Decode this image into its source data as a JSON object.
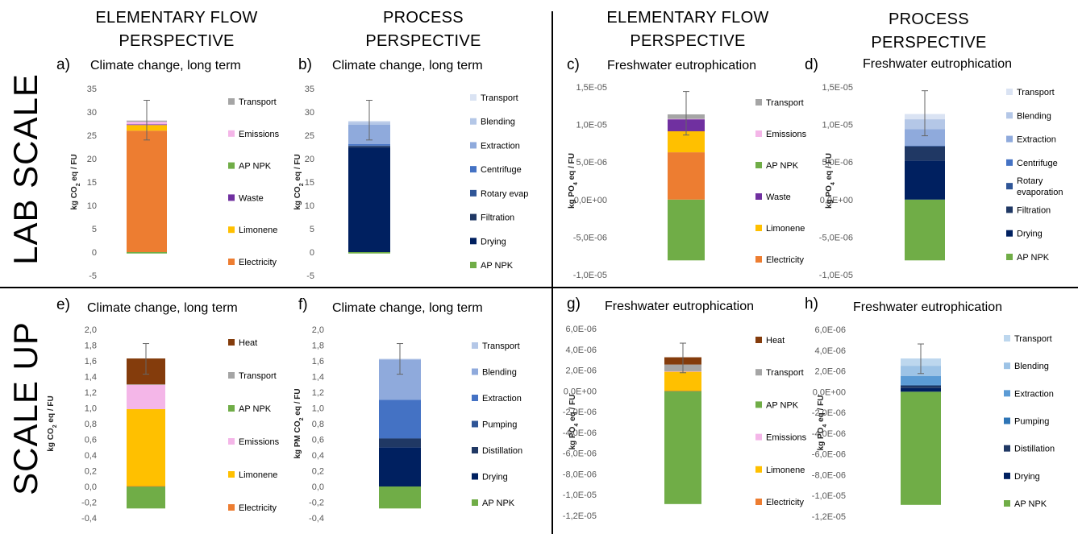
{
  "figure": {
    "header_left_1": "ELEMENTARY FLOW",
    "header_left_2": "PERSPECTIVE",
    "header_mid_1": "PROCESS",
    "header_mid_2": "PERSPECTIVE",
    "header_right_1": "ELEMENTARY FLOW",
    "header_right_2": "PERSPECTIVE",
    "header_far_1": "PROCESS",
    "header_far_2": "PERSPECTIVE",
    "row_top": "LAB SCALE",
    "row_bottom": "SCALE UP"
  },
  "colors": {
    "Electricity": "#ED7D31",
    "Limonene": "#FFC000",
    "Waste": "#7030A0",
    "AP NPK": "#70AD47",
    "Emissions": "#F4B6E8",
    "Transport": "#A5A5A5",
    "Heat": "#843C0C",
    "Drying": "#002060",
    "Filtration": "#203864",
    "Rotary": "#2F5597",
    "Centrifuge": "#4472C4",
    "Extraction": "#8FAADC",
    "Blending": "#B4C7E7",
    "TransportP": "#DAE3F3",
    "Distillation": "#203864",
    "Pumping": "#2E75B6",
    "ExtractionS": "#4472C4",
    "BlendingS": "#8FAADC",
    "ExtractionH": "#5B9BD5",
    "BlendingH": "#9DC3E6",
    "TransportH": "#BDD7EE"
  },
  "chart_data": [
    {
      "type": "bar",
      "stacked": true,
      "panel_label": "a)",
      "title": "Climate change, long term",
      "ylabel_main": "kg CO",
      "ylabel_sub": "2",
      "ylabel_tail": " eq / FU",
      "yticks": [
        "35",
        "30",
        "25",
        "20",
        "15",
        "10",
        "5",
        "0",
        "-5"
      ],
      "ylim": [
        -5,
        35
      ],
      "segments": [
        {
          "name": "AP NPK",
          "value": -0.3,
          "color": "#70AD47"
        },
        {
          "name": "Electricity",
          "value": 26.0,
          "color": "#ED7D31"
        },
        {
          "name": "Limonene",
          "value": 1.2,
          "color": "#FFC000"
        },
        {
          "name": "Waste",
          "value": 0.15,
          "color": "#7030A0"
        },
        {
          "name": "Emissions",
          "value": 0.55,
          "color": "#F4B6E8"
        },
        {
          "name": "Transport",
          "value": 0.25,
          "color": "#A5A5A5"
        }
      ],
      "error_bar": {
        "low": 24.0,
        "high": 32.5
      },
      "legend": [
        {
          "name": "Transport",
          "color": "#A5A5A5"
        },
        {
          "name": "Emissions",
          "color": "#F4B6E8"
        },
        {
          "name": "AP NPK",
          "color": "#70AD47"
        },
        {
          "name": "Waste",
          "color": "#7030A0"
        },
        {
          "name": "Limonene",
          "color": "#FFC000"
        },
        {
          "name": "Electricity",
          "color": "#ED7D31"
        }
      ]
    },
    {
      "type": "bar",
      "stacked": true,
      "panel_label": "b)",
      "title": "Climate change, long term",
      "ylabel_main": "kg CO",
      "ylabel_sub": "2",
      "ylabel_tail": " eq / FU",
      "yticks": [
        "35",
        "30",
        "25",
        "20",
        "15",
        "10",
        "5",
        "0",
        "-5"
      ],
      "ylim": [
        -5,
        35
      ],
      "segments": [
        {
          "name": "AP NPK",
          "value": -0.3,
          "color": "#70AD47"
        },
        {
          "name": "Drying",
          "value": 22.4,
          "color": "#002060"
        },
        {
          "name": "Filtration",
          "value": 0.3,
          "color": "#203864"
        },
        {
          "name": "Rotary evap",
          "value": 0.1,
          "color": "#2F5597"
        },
        {
          "name": "Centrifuge",
          "value": 0.3,
          "color": "#4472C4"
        },
        {
          "name": "Extraction",
          "value": 4.2,
          "color": "#8FAADC"
        },
        {
          "name": "Blending",
          "value": 0.6,
          "color": "#B4C7E7"
        },
        {
          "name": "Transport",
          "value": 0.2,
          "color": "#DAE3F3"
        }
      ],
      "error_bar": {
        "low": 24.0,
        "high": 32.5
      },
      "legend": [
        {
          "name": "Transport",
          "color": "#DAE3F3"
        },
        {
          "name": "Blending",
          "color": "#B4C7E7"
        },
        {
          "name": "Extraction",
          "color": "#8FAADC"
        },
        {
          "name": "Centrifuge",
          "color": "#4472C4"
        },
        {
          "name": "Rotary evap",
          "color": "#2F5597"
        },
        {
          "name": "Filtration",
          "color": "#203864"
        },
        {
          "name": "Drying",
          "color": "#002060"
        },
        {
          "name": "AP NPK",
          "color": "#70AD47"
        }
      ]
    },
    {
      "type": "bar",
      "stacked": true,
      "panel_label": "c)",
      "title": "Freshwater eutrophication",
      "ylabel_main": "kg PO",
      "ylabel_sub": "4",
      "ylabel_tail": " eq / FU",
      "yticks": [
        "1,5E-05",
        "1,0E-05",
        "5,0E-06",
        "0,0E+00",
        "-5,0E-06",
        "-1,0E-05"
      ],
      "ylim": [
        -1e-05,
        1.5e-05
      ],
      "segments": [
        {
          "name": "AP NPK",
          "value": -8.1e-06,
          "color": "#70AD47"
        },
        {
          "name": "Electricity",
          "value": 6.3e-06,
          "color": "#ED7D31"
        },
        {
          "name": "Limonene",
          "value": 2.8e-06,
          "color": "#FFC000"
        },
        {
          "name": "Waste",
          "value": 1.6e-06,
          "color": "#7030A0"
        },
        {
          "name": "Emissions",
          "value": 5e-08,
          "color": "#F4B6E8"
        },
        {
          "name": "Transport",
          "value": 6e-07,
          "color": "#A5A5A5"
        }
      ],
      "error_bar": {
        "low": 8.6e-06,
        "high": 1.44e-05
      },
      "legend": [
        {
          "name": "Transport",
          "color": "#A5A5A5"
        },
        {
          "name": "Emissions",
          "color": "#F4B6E8"
        },
        {
          "name": "AP NPK",
          "color": "#70AD47"
        },
        {
          "name": "Waste",
          "color": "#7030A0"
        },
        {
          "name": "Limonene",
          "color": "#FFC000"
        },
        {
          "name": "Electricity",
          "color": "#ED7D31"
        }
      ]
    },
    {
      "type": "bar",
      "stacked": true,
      "panel_label": "d)",
      "title": "Freshwater eutrophication",
      "ylabel_main": "kg PO",
      "ylabel_sub": "4",
      "ylabel_tail": " eq / FU",
      "yticks": [
        "1,5E-05",
        "1,0E-05",
        "5,0E-06",
        "0,0E+00",
        "-5,0E-06",
        "-1,0E-05"
      ],
      "ylim": [
        -1e-05,
        1.5e-05
      ],
      "segments": [
        {
          "name": "AP NPK",
          "value": -8.1e-06,
          "color": "#70AD47"
        },
        {
          "name": "Drying",
          "value": 5.2e-06,
          "color": "#002060"
        },
        {
          "name": "Filtration",
          "value": 1.9e-06,
          "color": "#203864"
        },
        {
          "name": "Rotary evaporation",
          "value": 5e-08,
          "color": "#2F5597"
        },
        {
          "name": "Centrifuge",
          "value": 5e-08,
          "color": "#4472C4"
        },
        {
          "name": "Extraction",
          "value": 2.2e-06,
          "color": "#8FAADC"
        },
        {
          "name": "Blending",
          "value": 1.3e-06,
          "color": "#B4C7E7"
        },
        {
          "name": "Transport",
          "value": 7e-07,
          "color": "#DAE3F3"
        }
      ],
      "error_bar": {
        "low": 8.5e-06,
        "high": 1.45e-05
      },
      "legend": [
        {
          "name": "Transport",
          "color": "#DAE3F3"
        },
        {
          "name": "Blending",
          "color": "#B4C7E7"
        },
        {
          "name": "Extraction",
          "color": "#8FAADC"
        },
        {
          "name": "Centrifuge",
          "color": "#4472C4"
        },
        {
          "name": "Rotary evaporation",
          "color": "#2F5597"
        },
        {
          "name": "Filtration",
          "color": "#203864"
        },
        {
          "name": "Drying",
          "color": "#002060"
        },
        {
          "name": "AP NPK",
          "color": "#70AD47"
        }
      ]
    },
    {
      "type": "bar",
      "stacked": true,
      "panel_label": "e)",
      "title": "Climate change, long term",
      "ylabel_main": "kg CO",
      "ylabel_sub": "2",
      "ylabel_tail": " eq / FU",
      "yticks": [
        "2,0",
        "1,8",
        "1,6",
        "1,4",
        "1,2",
        "1,0",
        "0,8",
        "0,6",
        "0,4",
        "0,2",
        "0,0",
        "-0,2",
        "-0,4"
      ],
      "ylim": [
        -0.4,
        2.0
      ],
      "segments": [
        {
          "name": "AP NPK",
          "value": -0.28,
          "color": "#70AD47"
        },
        {
          "name": "Electricity",
          "value": 0.005,
          "color": "#ED7D31"
        },
        {
          "name": "Limonene",
          "value": 0.98,
          "color": "#FFC000"
        },
        {
          "name": "Emissions",
          "value": 0.31,
          "color": "#F4B6E8"
        },
        {
          "name": "Transport",
          "value": 0.005,
          "color": "#A5A5A5"
        },
        {
          "name": "Heat",
          "value": 0.33,
          "color": "#843C0C"
        }
      ],
      "error_bar": {
        "low": 1.43,
        "high": 1.82
      },
      "legend": [
        {
          "name": "Heat",
          "color": "#843C0C"
        },
        {
          "name": "Transport",
          "color": "#A5A5A5"
        },
        {
          "name": "AP NPK",
          "color": "#70AD47"
        },
        {
          "name": "Emissions",
          "color": "#F4B6E8"
        },
        {
          "name": "Limonene",
          "color": "#FFC000"
        },
        {
          "name": "Electricity",
          "color": "#ED7D31"
        }
      ]
    },
    {
      "type": "bar",
      "stacked": true,
      "panel_label": "f)",
      "title": "Climate change, long term",
      "ylabel_main": "kg PM CO",
      "ylabel_sub": "2",
      "ylabel_tail": " eq / FU",
      "yticks": [
        "2,0",
        "1,8",
        "1,6",
        "1,4",
        "1,2",
        "1,0",
        "0,8",
        "0,6",
        "0,4",
        "0,2",
        "0,0",
        "-0,2",
        "-0,4"
      ],
      "ylim": [
        -0.4,
        2.0
      ],
      "segments": [
        {
          "name": "AP NPK",
          "value": -0.28,
          "color": "#70AD47"
        },
        {
          "name": "Drying",
          "value": 0.5,
          "color": "#002060"
        },
        {
          "name": "Distillation",
          "value": 0.11,
          "color": "#203864"
        },
        {
          "name": "Pumping",
          "value": 0.005,
          "color": "#2F5597"
        },
        {
          "name": "Extraction",
          "value": 0.49,
          "color": "#4472C4"
        },
        {
          "name": "Blending",
          "value": 0.51,
          "color": "#8FAADC"
        },
        {
          "name": "Transport",
          "value": 0.01,
          "color": "#B4C7E7"
        }
      ],
      "error_bar": {
        "low": 1.43,
        "high": 1.82
      },
      "legend": [
        {
          "name": "Transport",
          "color": "#B4C7E7"
        },
        {
          "name": "Blending",
          "color": "#8FAADC"
        },
        {
          "name": "Extraction",
          "color": "#4472C4"
        },
        {
          "name": "Pumping",
          "color": "#2F5597"
        },
        {
          "name": "Distillation",
          "color": "#203864"
        },
        {
          "name": "Drying",
          "color": "#002060"
        },
        {
          "name": "AP NPK",
          "color": "#70AD47"
        }
      ]
    },
    {
      "type": "bar",
      "stacked": true,
      "panel_label": "g)",
      "title": "Freshwater eutrophication",
      "ylabel_main": "kg PO",
      "ylabel_sub": "4",
      "ylabel_tail": " eq / FU",
      "yticks": [
        "6,0E-06",
        "4,0E-06",
        "2,0E-06",
        "0,0E+00",
        "-2,0E-06",
        "-4,0E-06",
        "-6,0E-06",
        "-8,0E-06",
        "-1,0E-05",
        "-1,2E-05"
      ],
      "ylim": [
        -1.2e-05,
        6e-06
      ],
      "segments": [
        {
          "name": "AP NPK",
          "value": -1.09e-05,
          "color": "#70AD47"
        },
        {
          "name": "Electricity",
          "value": 2e-08,
          "color": "#ED7D31"
        },
        {
          "name": "Limonene",
          "value": 1.85e-06,
          "color": "#FFC000"
        },
        {
          "name": "Emissions",
          "value": 2e-08,
          "color": "#F4B6E8"
        },
        {
          "name": "Transport",
          "value": 6.5e-07,
          "color": "#A5A5A5"
        },
        {
          "name": "Heat",
          "value": 7e-07,
          "color": "#843C0C"
        }
      ],
      "error_bar": {
        "low": 1.75e-06,
        "high": 4.6e-06
      },
      "legend": [
        {
          "name": "Heat",
          "color": "#843C0C"
        },
        {
          "name": "Transport",
          "color": "#A5A5A5"
        },
        {
          "name": "AP NPK",
          "color": "#70AD47"
        },
        {
          "name": "Emissions",
          "color": "#F4B6E8"
        },
        {
          "name": "Limonene",
          "color": "#FFC000"
        },
        {
          "name": "Electricity",
          "color": "#ED7D31"
        }
      ]
    },
    {
      "type": "bar",
      "stacked": true,
      "panel_label": "h)",
      "title": "Freshwater eutrophication",
      "ylabel_main": "kg PO",
      "ylabel_sub": "4",
      "ylabel_tail": " eq / FU",
      "yticks": [
        "6,0E-06",
        "4,0E-06",
        "2,0E-06",
        "0,0E+00",
        "-2,0E-06",
        "-4,0E-06",
        "-6,0E-06",
        "-8,0E-06",
        "-1,0E-05",
        "-1,2E-05"
      ],
      "ylim": [
        -1.2e-05,
        6e-06
      ],
      "segments": [
        {
          "name": "AP NPK",
          "value": -1.09e-05,
          "color": "#70AD47"
        },
        {
          "name": "Drying",
          "value": 3.5e-07,
          "color": "#002060"
        },
        {
          "name": "Distillation",
          "value": 2.5e-07,
          "color": "#203864"
        },
        {
          "name": "Pumping",
          "value": 5e-08,
          "color": "#2E75B6"
        },
        {
          "name": "Extraction",
          "value": 8.5e-07,
          "color": "#5B9BD5"
        },
        {
          "name": "Blending",
          "value": 1e-06,
          "color": "#9DC3E6"
        },
        {
          "name": "Transport",
          "value": 7e-07,
          "color": "#BDD7EE"
        }
      ],
      "error_bar": {
        "low": 1.75e-06,
        "high": 4.6e-06
      },
      "legend": [
        {
          "name": "Transport",
          "color": "#BDD7EE"
        },
        {
          "name": "Blending",
          "color": "#9DC3E6"
        },
        {
          "name": "Extraction",
          "color": "#5B9BD5"
        },
        {
          "name": "Pumping",
          "color": "#2E75B6"
        },
        {
          "name": "Distillation",
          "color": "#203864"
        },
        {
          "name": "Drying",
          "color": "#002060"
        },
        {
          "name": "AP NPK",
          "color": "#70AD47"
        }
      ]
    }
  ]
}
